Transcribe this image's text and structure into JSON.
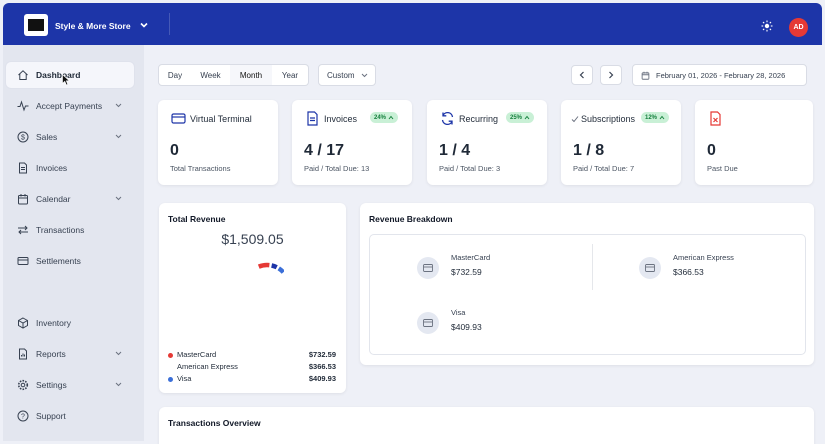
{
  "header": {
    "store_name": "Style & More Store",
    "avatar_initials": "AD",
    "brand_color": "#1d35a8",
    "avatar_color": "#e53935"
  },
  "sidebar": {
    "items": [
      {
        "label": "Dashboard",
        "icon": "home-icon",
        "active": true,
        "has_chevron": false
      },
      {
        "label": "Accept Payments",
        "icon": "pulse-icon",
        "has_chevron": true
      },
      {
        "label": "Sales",
        "icon": "dollar-icon",
        "has_chevron": true
      },
      {
        "label": "Invoices",
        "icon": "document-icon",
        "has_chevron": false
      },
      {
        "label": "Calendar",
        "icon": "calendar-icon",
        "has_chevron": true
      },
      {
        "label": "Transactions",
        "icon": "arrows-icon",
        "has_chevron": false
      },
      {
        "label": "Settlements",
        "icon": "card-icon",
        "has_chevron": false
      },
      {
        "label": "Inventory",
        "icon": "box-icon",
        "has_chevron": false
      },
      {
        "label": "Reports",
        "icon": "folder-icon",
        "has_chevron": true
      },
      {
        "label": "Settings",
        "icon": "gear-icon",
        "has_chevron": true
      },
      {
        "label": "Support",
        "icon": "help-icon",
        "has_chevron": false
      }
    ]
  },
  "filters": {
    "periods": [
      "Day",
      "Week",
      "Month",
      "Year"
    ],
    "active_period": "Month",
    "custom_label": "Custom",
    "date_range": "February 01, 2026 - February 28, 2026"
  },
  "kpis": [
    {
      "title": "Virtual Terminal",
      "icon": "credit-card-icon",
      "badge": "",
      "value": "0",
      "sub": "Total Transactions"
    },
    {
      "title": "Invoices",
      "icon": "document-icon",
      "badge": "24%",
      "value": "4 / 17",
      "sub": "Paid / Total Due: 13"
    },
    {
      "title": "Recurring",
      "icon": "refresh-icon",
      "badge": "25%",
      "value": "1 / 4",
      "sub": "Paid / Total Due: 3"
    },
    {
      "title": "Subscriptions",
      "icon": "check-icon",
      "badge": "12%",
      "value": "1 / 8",
      "sub": "Paid / Total Due: 7"
    },
    {
      "title": "",
      "icon": "file-x-icon",
      "badge": "",
      "value": "0",
      "sub": "Past Due"
    }
  ],
  "total_revenue": {
    "title": "Total Revenue",
    "amount": "$1,509.05",
    "legend": [
      {
        "name": "MasterCard",
        "value": "$732.59",
        "color": "#e53935"
      },
      {
        "name": "American Express",
        "value": "$366.53",
        "color": "#1d35a8"
      },
      {
        "name": "Visa",
        "value": "$409.93",
        "color": "#3b6fd8"
      }
    ]
  },
  "chart_data": {
    "type": "pie",
    "categories": [
      "MasterCard",
      "American Express",
      "Visa"
    ],
    "values": [
      732.59,
      366.53,
      409.93
    ]
  },
  "revenue_breakdown": {
    "title": "Revenue Breakdown",
    "items": [
      {
        "name": "MasterCard",
        "value": "$732.59"
      },
      {
        "name": "American Express",
        "value": "$366.53"
      },
      {
        "name": "Visa",
        "value": "$409.93"
      }
    ]
  },
  "transactions_overview": {
    "title": "Transactions Overview"
  }
}
